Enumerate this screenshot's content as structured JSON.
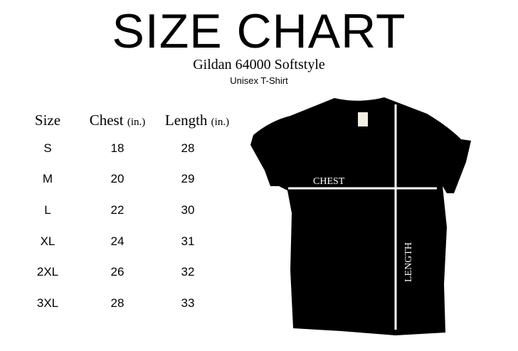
{
  "title": "SIZE CHART",
  "product": "Gildan 64000 Softstyle",
  "style": "Unisex T-Shirt",
  "table": {
    "headers": [
      {
        "label": "Size",
        "unit": ""
      },
      {
        "label": "Chest",
        "unit": "(in.)"
      },
      {
        "label": "Length",
        "unit": "(in.)"
      }
    ],
    "rows": [
      [
        "S",
        "18",
        "28"
      ],
      [
        "M",
        "20",
        "29"
      ],
      [
        "L",
        "22",
        "30"
      ],
      [
        "XL",
        "24",
        "31"
      ],
      [
        "2XL",
        "26",
        "32"
      ],
      [
        "3XL",
        "28",
        "33"
      ]
    ]
  },
  "diagram": {
    "chest_label": "CHEST",
    "length_label": "LENGTH",
    "shirt_color": "#000000",
    "line_color": "#ffffff"
  }
}
